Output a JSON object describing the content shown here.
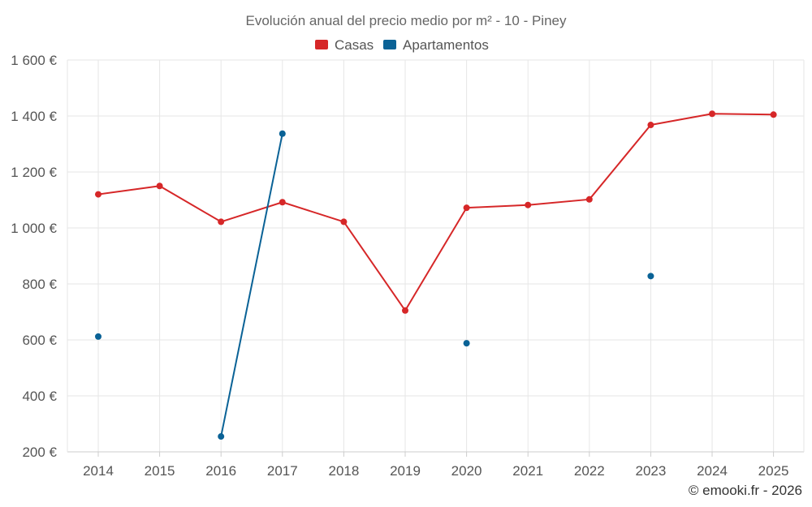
{
  "chart_data": {
    "type": "line",
    "title": "Evolución anual del precio medio por m² - 10 - Piney",
    "categories": [
      "2014",
      "2015",
      "2016",
      "2017",
      "2018",
      "2019",
      "2020",
      "2021",
      "2022",
      "2023",
      "2024",
      "2025"
    ],
    "y_ticks": [
      200,
      400,
      600,
      800,
      1000,
      1200,
      1400,
      1600
    ],
    "y_tick_labels": [
      "200 €",
      "400 €",
      "600 €",
      "800 €",
      "1 000 €",
      "1 200 €",
      "1 400 €",
      "1 600 €"
    ],
    "ylim": [
      200,
      1600
    ],
    "grid": true,
    "legend_position": "top-center",
    "series": [
      {
        "name": "Casas",
        "color": "#d62728",
        "values": [
          1120,
          1150,
          1022,
          1092,
          1022,
          705,
          1072,
          1082,
          1102,
          1368,
          1408,
          1405
        ]
      },
      {
        "name": "Apartamentos",
        "color": "#0a6296",
        "values": [
          612,
          null,
          255,
          1337,
          null,
          null,
          588,
          null,
          null,
          828,
          null,
          null
        ]
      }
    ]
  },
  "credit": "© emooki.fr - 2026"
}
